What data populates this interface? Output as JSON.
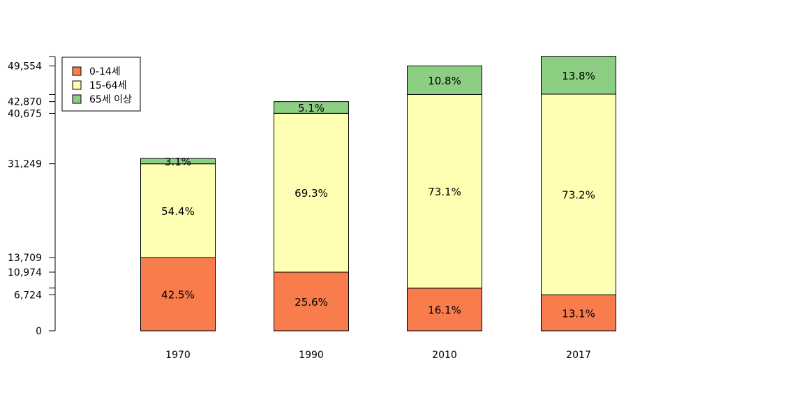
{
  "chart_data": {
    "type": "bar",
    "stacked": true,
    "title": "",
    "xlabel": "",
    "ylabel": "",
    "categories": [
      "1970",
      "1990",
      "2010",
      "2017"
    ],
    "ylim": [
      0,
      51700
    ],
    "yticks": [
      0,
      6724,
      10974,
      13709,
      31249,
      40675,
      42870,
      49554
    ],
    "ytick_labels": [
      "0",
      "6,724",
      "10,974",
      "13,709",
      "31,249",
      "40,675",
      "42,870",
      "49,554"
    ],
    "extra_ticks": [
      8000,
      44200,
      51300
    ],
    "totals": [
      32240,
      42870,
      49554,
      51300
    ],
    "series": [
      {
        "name": "0-14세",
        "color": "#f87c4c",
        "percent": [
          42.5,
          25.6,
          16.1,
          13.1
        ],
        "labels": [
          "42.5%",
          "25.6%",
          "16.1%",
          "13.1%"
        ]
      },
      {
        "name": "15-64세",
        "color": "#ffffb3",
        "percent": [
          54.4,
          69.3,
          73.1,
          73.2
        ],
        "labels": [
          "54.4%",
          "69.3%",
          "73.1%",
          "73.2%"
        ]
      },
      {
        "name": "65세 이상",
        "color": "#8ccf82",
        "percent": [
          3.1,
          5.1,
          10.8,
          13.8
        ],
        "labels": [
          "3.1%",
          "5.1%",
          "10.8%",
          "13.8%"
        ]
      }
    ],
    "legend_position": "top-left",
    "grid": false
  }
}
